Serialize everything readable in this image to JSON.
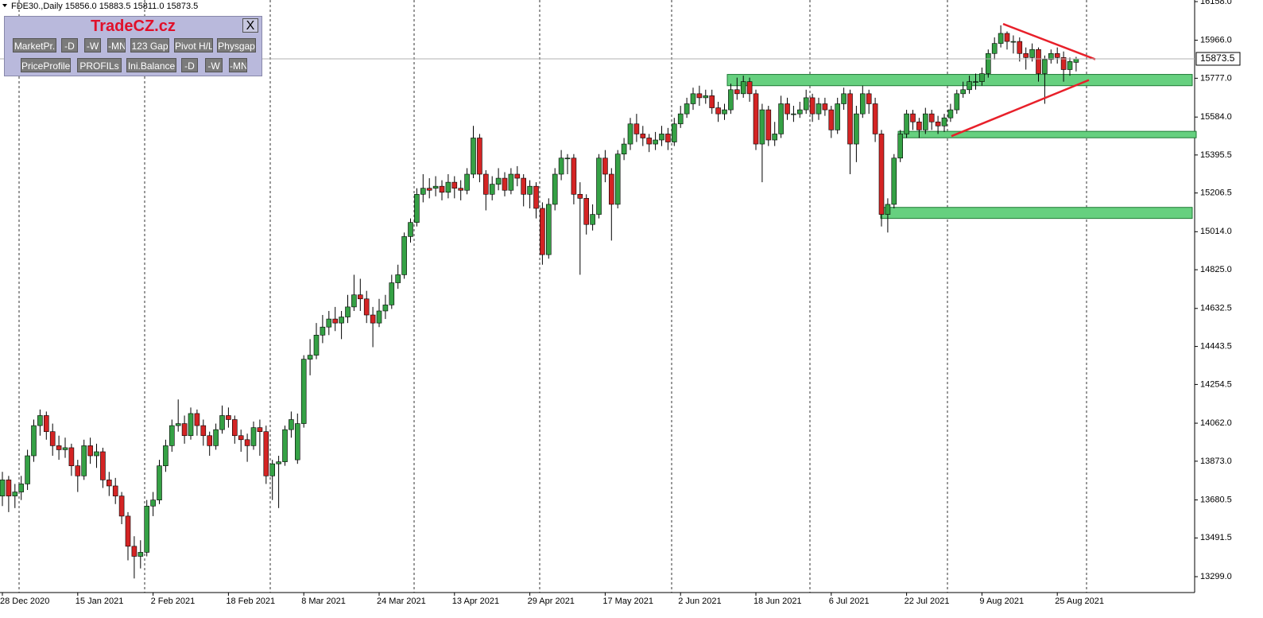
{
  "chart_data": {
    "type": "candlestick",
    "symbol": "FDE30.,Daily",
    "last_labels": [
      "15856.0",
      "15883.5",
      "15811.0",
      "15873.5"
    ],
    "categories": [
      "28 Dec 2020",
      null,
      null,
      null,
      null,
      null,
      null,
      null,
      null,
      null,
      null,
      null,
      "15 Jan 2021",
      null,
      null,
      null,
      null,
      null,
      null,
      null,
      null,
      null,
      null,
      null,
      "2 Feb 2021",
      null,
      null,
      null,
      null,
      null,
      null,
      null,
      null,
      null,
      null,
      null,
      "18 Feb 2021",
      null,
      null,
      null,
      null,
      null,
      null,
      null,
      null,
      null,
      null,
      null,
      "8 Mar 2021",
      null,
      null,
      null,
      null,
      null,
      null,
      null,
      null,
      null,
      null,
      null,
      "24 Mar 2021",
      null,
      null,
      null,
      null,
      null,
      null,
      null,
      null,
      null,
      null,
      null,
      "13 Apr 2021",
      null,
      null,
      null,
      null,
      null,
      null,
      null,
      null,
      null,
      null,
      null,
      "29 Apr 2021",
      null,
      null,
      null,
      null,
      null,
      null,
      null,
      null,
      null,
      null,
      null,
      "17 May 2021",
      null,
      null,
      null,
      null,
      null,
      null,
      null,
      null,
      null,
      null,
      null,
      "2 Jun 2021",
      null,
      null,
      null,
      null,
      null,
      null,
      null,
      null,
      null,
      null,
      null,
      "18 Jun 2021",
      null,
      null,
      null,
      null,
      null,
      null,
      null,
      null,
      null,
      null,
      null,
      "6 Jul 2021",
      null,
      null,
      null,
      null,
      null,
      null,
      null,
      null,
      null,
      null,
      null,
      "22 Jul 2021",
      null,
      null,
      null,
      null,
      null,
      null,
      null,
      null,
      null,
      null,
      null,
      "9 Aug 2021",
      null,
      null,
      null,
      null,
      null,
      null,
      null,
      null,
      null,
      null,
      null,
      "25 Aug 2021",
      null,
      null,
      null
    ],
    "candles": [
      [
        13700,
        13820,
        13650,
        13780
      ],
      [
        13780,
        13800,
        13620,
        13700
      ],
      [
        13700,
        13760,
        13640,
        13720
      ],
      [
        13720,
        13800,
        13680,
        13760
      ],
      [
        13760,
        13930,
        13730,
        13900
      ],
      [
        13900,
        14080,
        13870,
        14050
      ],
      [
        14050,
        14130,
        14000,
        14100
      ],
      [
        14100,
        14120,
        13980,
        14020
      ],
      [
        14020,
        14060,
        13900,
        13950
      ],
      [
        13950,
        14000,
        13880,
        13930
      ],
      [
        13930,
        13990,
        13890,
        13940
      ],
      [
        13940,
        13960,
        13800,
        13850
      ],
      [
        13850,
        13880,
        13720,
        13800
      ],
      [
        13800,
        13980,
        13780,
        13950
      ],
      [
        13950,
        13990,
        13860,
        13900
      ],
      [
        13900,
        13960,
        13840,
        13920
      ],
      [
        13920,
        13940,
        13740,
        13780
      ],
      [
        13780,
        13820,
        13700,
        13750
      ],
      [
        13750,
        13790,
        13660,
        13700
      ],
      [
        13700,
        13720,
        13560,
        13600
      ],
      [
        13600,
        13620,
        13380,
        13450
      ],
      [
        13450,
        13500,
        13290,
        13400
      ],
      [
        13400,
        13480,
        13340,
        13420
      ],
      [
        13420,
        13680,
        13400,
        13650
      ],
      [
        13650,
        13720,
        13600,
        13680
      ],
      [
        13680,
        13880,
        13660,
        13850
      ],
      [
        13850,
        13980,
        13820,
        13950
      ],
      [
        13950,
        14080,
        13920,
        14050
      ],
      [
        14050,
        14180,
        14020,
        14060
      ],
      [
        14060,
        14100,
        13960,
        14000
      ],
      [
        14000,
        14140,
        13980,
        14110
      ],
      [
        14110,
        14130,
        14000,
        14050
      ],
      [
        14050,
        14080,
        13950,
        14000
      ],
      [
        14000,
        14020,
        13900,
        13950
      ],
      [
        13950,
        14060,
        13930,
        14030
      ],
      [
        14030,
        14150,
        14010,
        14100
      ],
      [
        14100,
        14140,
        14040,
        14080
      ],
      [
        14080,
        14100,
        13960,
        14000
      ],
      [
        14000,
        14030,
        13920,
        13980
      ],
      [
        13980,
        14010,
        13870,
        13950
      ],
      [
        13950,
        14070,
        13930,
        14040
      ],
      [
        14040,
        14080,
        13900,
        14020
      ],
      [
        14020,
        14050,
        13760,
        13800
      ],
      [
        13800,
        13880,
        13680,
        13860
      ],
      [
        13860,
        13900,
        13640,
        13870
      ],
      [
        13870,
        14050,
        13850,
        14030
      ],
      [
        14030,
        14120,
        13990,
        14080
      ],
      [
        13880,
        14110,
        13860,
        14060
      ],
      [
        14060,
        14400,
        14040,
        14380
      ],
      [
        14380,
        14480,
        14300,
        14400
      ],
      [
        14400,
        14560,
        14380,
        14500
      ],
      [
        14500,
        14600,
        14460,
        14540
      ],
      [
        14540,
        14620,
        14500,
        14580
      ],
      [
        14580,
        14640,
        14520,
        14560
      ],
      [
        14560,
        14620,
        14480,
        14590
      ],
      [
        14590,
        14700,
        14560,
        14640
      ],
      [
        14640,
        14800,
        14620,
        14700
      ],
      [
        14700,
        14780,
        14620,
        14680
      ],
      [
        14680,
        14720,
        14560,
        14600
      ],
      [
        14600,
        14640,
        14440,
        14560
      ],
      [
        14560,
        14680,
        14540,
        14620
      ],
      [
        14620,
        14700,
        14580,
        14650
      ],
      [
        14650,
        14800,
        14630,
        14760
      ],
      [
        14760,
        14850,
        14730,
        14800
      ],
      [
        14800,
        15010,
        14780,
        14990
      ],
      [
        14990,
        15080,
        14960,
        15060
      ],
      [
        15060,
        15230,
        15040,
        15200
      ],
      [
        15200,
        15300,
        15160,
        15230
      ],
      [
        15230,
        15280,
        15180,
        15220
      ],
      [
        15230,
        15290,
        15190,
        15240
      ],
      [
        15240,
        15270,
        15170,
        15210
      ],
      [
        15210,
        15300,
        15180,
        15260
      ],
      [
        15260,
        15290,
        15180,
        15230
      ],
      [
        15230,
        15270,
        15170,
        15220
      ],
      [
        15220,
        15330,
        15200,
        15300
      ],
      [
        15300,
        15540,
        15280,
        15480
      ],
      [
        15480,
        15500,
        15260,
        15300
      ],
      [
        15300,
        15320,
        15120,
        15200
      ],
      [
        15200,
        15290,
        15170,
        15250
      ],
      [
        15250,
        15330,
        15220,
        15280
      ],
      [
        15280,
        15310,
        15190,
        15220
      ],
      [
        15220,
        15330,
        15200,
        15300
      ],
      [
        15300,
        15340,
        15240,
        15280
      ],
      [
        15280,
        15300,
        15140,
        15200
      ],
      [
        15200,
        15270,
        15130,
        15240
      ],
      [
        15240,
        15260,
        15080,
        15130
      ],
      [
        15130,
        15160,
        14850,
        14900
      ],
      [
        14900,
        15180,
        14880,
        15150
      ],
      [
        15150,
        15330,
        15120,
        15300
      ],
      [
        15300,
        15420,
        15270,
        15380
      ],
      [
        15380,
        15400,
        15300,
        15380
      ],
      [
        15380,
        15400,
        15150,
        15200
      ],
      [
        15200,
        15260,
        14800,
        15180
      ],
      [
        15180,
        15200,
        15000,
        15050
      ],
      [
        15050,
        15150,
        15020,
        15100
      ],
      [
        15100,
        15400,
        15080,
        15380
      ],
      [
        15380,
        15420,
        15260,
        15300
      ],
      [
        15300,
        15330,
        14970,
        15150
      ],
      [
        15150,
        15420,
        15130,
        15400
      ],
      [
        15400,
        15480,
        15370,
        15450
      ],
      [
        15450,
        15580,
        15420,
        15550
      ],
      [
        15550,
        15600,
        15460,
        15500
      ],
      [
        15500,
        15540,
        15440,
        15480
      ],
      [
        15480,
        15500,
        15410,
        15450
      ],
      [
        15450,
        15510,
        15420,
        15470
      ],
      [
        15470,
        15540,
        15440,
        15500
      ],
      [
        15500,
        15530,
        15420,
        15460
      ],
      [
        15460,
        15580,
        15440,
        15550
      ],
      [
        15550,
        15640,
        15530,
        15600
      ],
      [
        15600,
        15680,
        15580,
        15650
      ],
      [
        15650,
        15730,
        15620,
        15700
      ],
      [
        15700,
        15740,
        15640,
        15680
      ],
      [
        15680,
        15720,
        15650,
        15690
      ],
      [
        15690,
        15720,
        15600,
        15630
      ],
      [
        15630,
        15660,
        15560,
        15600
      ],
      [
        15600,
        15650,
        15570,
        15620
      ],
      [
        15620,
        15750,
        15600,
        15720
      ],
      [
        15720,
        15780,
        15670,
        15700
      ],
      [
        15700,
        15790,
        15680,
        15760
      ],
      [
        15760,
        15780,
        15660,
        15700
      ],
      [
        15700,
        15720,
        15420,
        15450
      ],
      [
        15450,
        15650,
        15260,
        15620
      ],
      [
        15620,
        15640,
        15440,
        15470
      ],
      [
        15470,
        15560,
        15440,
        15500
      ],
      [
        15500,
        15690,
        15480,
        15650
      ],
      [
        15650,
        15680,
        15570,
        15600
      ],
      [
        15600,
        15640,
        15560,
        15600
      ],
      [
        15600,
        15660,
        15580,
        15620
      ],
      [
        15620,
        15720,
        15600,
        15680
      ],
      [
        15680,
        15700,
        15560,
        15600
      ],
      [
        15600,
        15680,
        15570,
        15650
      ],
      [
        15650,
        15680,
        15590,
        15620
      ],
      [
        15620,
        15640,
        15480,
        15520
      ],
      [
        15520,
        15680,
        15500,
        15650
      ],
      [
        15650,
        15730,
        15620,
        15700
      ],
      [
        15700,
        15720,
        15300,
        15450
      ],
      [
        15450,
        15640,
        15360,
        15600
      ],
      [
        15600,
        15740,
        15580,
        15700
      ],
      [
        15700,
        15720,
        15600,
        15650
      ],
      [
        15650,
        15680,
        15460,
        15500
      ],
      [
        15500,
        15520,
        15040,
        15100
      ],
      [
        15100,
        15180,
        15010,
        15150
      ],
      [
        15150,
        15400,
        15130,
        15380
      ],
      [
        15380,
        15520,
        15360,
        15500
      ],
      [
        15500,
        15620,
        15480,
        15600
      ],
      [
        15600,
        15620,
        15520,
        15560
      ],
      [
        15560,
        15580,
        15480,
        15520
      ],
      [
        15520,
        15630,
        15500,
        15600
      ],
      [
        15600,
        15620,
        15520,
        15560
      ],
      [
        15560,
        15590,
        15500,
        15540
      ],
      [
        15540,
        15600,
        15510,
        15580
      ],
      [
        15580,
        15650,
        15560,
        15620
      ],
      [
        15620,
        15720,
        15600,
        15700
      ],
      [
        15700,
        15760,
        15680,
        15720
      ],
      [
        15720,
        15790,
        15700,
        15760
      ],
      [
        15760,
        15800,
        15720,
        15760
      ],
      [
        15760,
        15830,
        15740,
        15800
      ],
      [
        15800,
        15920,
        15780,
        15900
      ],
      [
        15900,
        15980,
        15870,
        15950
      ],
      [
        15950,
        16040,
        15930,
        16000
      ],
      [
        16000,
        16010,
        15920,
        15960
      ],
      [
        15960,
        15990,
        15900,
        15960
      ],
      [
        15960,
        15980,
        15860,
        15900
      ],
      [
        15900,
        15930,
        15820,
        15880
      ],
      [
        15880,
        15950,
        15860,
        15920
      ],
      [
        15920,
        15930,
        15760,
        15800
      ],
      [
        15800,
        15890,
        15650,
        15870
      ],
      [
        15870,
        15920,
        15850,
        15900
      ],
      [
        15900,
        15930,
        15850,
        15880
      ],
      [
        15880,
        15910,
        15760,
        15820
      ],
      [
        15820,
        15880,
        15790,
        15860
      ],
      [
        15856,
        15883.5,
        15811,
        15873.5
      ]
    ],
    "up_color": "#35a145",
    "down_color": "#d42424",
    "ylim": [
      13220,
      16166
    ],
    "yticks": [
      {
        "value": 16158,
        "label": "16158.0"
      },
      {
        "value": 15966,
        "label": "15966.0"
      },
      {
        "value": 15777,
        "label": "15777.0"
      },
      {
        "value": 15584,
        "label": "15584.0"
      },
      15395.5,
      15206.5,
      {
        "value": 15014,
        "label": "15014.0"
      },
      {
        "value": 14825,
        "label": "14825.0"
      },
      14632.5,
      14443.5,
      14254.5,
      {
        "value": 14062,
        "label": "14062.0"
      },
      {
        "value": 13873,
        "label": "13873.0"
      },
      13680.5,
      13491.5,
      {
        "value": 13299,
        "label": "13299.0"
      }
    ],
    "zones": [
      {
        "low": 15740,
        "high": 15796
      },
      {
        "low": 15481,
        "high": 15513
      },
      {
        "low": 15080,
        "high": 15135
      }
    ],
    "zone_color": "#66d07f",
    "trendlines": [
      [
        16047,
        15871
      ],
      [
        15489,
        15768
      ]
    ],
    "trend_color": "#e8202a"
  },
  "panel": {
    "title": "TradeCZ.cz",
    "close": "X",
    "row1": [
      "MarketPr.",
      "-D",
      "-W",
      "-MN",
      "123 Gap",
      "Pivot H/L",
      "Physgap"
    ],
    "row2": [
      "PriceProfile",
      "PROFILs",
      "Ini.Balance",
      "-D",
      "-W",
      "-MN"
    ]
  }
}
